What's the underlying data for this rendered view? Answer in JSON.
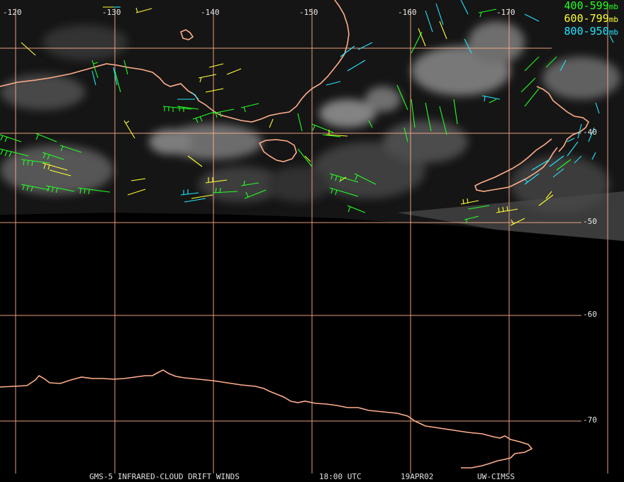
{
  "legend": {
    "items": [
      {
        "label": "400-599",
        "unit": "mb",
        "color": "#22ff22"
      },
      {
        "label": "600-799",
        "unit": "mb",
        "color": "#ffff33"
      },
      {
        "label": "800-950",
        "unit": "mb",
        "color": "#22e6ff"
      }
    ]
  },
  "longitude_labels": [
    "-120",
    "-130",
    "-140",
    "-150",
    "-160",
    "-170"
  ],
  "latitude_labels": [
    "-40",
    "-50",
    "-60",
    "-70"
  ],
  "footer": {
    "product": "GMS-5 INFRARED-CLOUD DRIFT WINDS",
    "time": "18:00 UTC",
    "date": "19APR02",
    "source": "UW-CIMSS"
  },
  "colors": {
    "coast": "#ffae8a",
    "grid": "#ffae8a",
    "background": "#000000",
    "cloud": "#b8b8b8"
  }
}
